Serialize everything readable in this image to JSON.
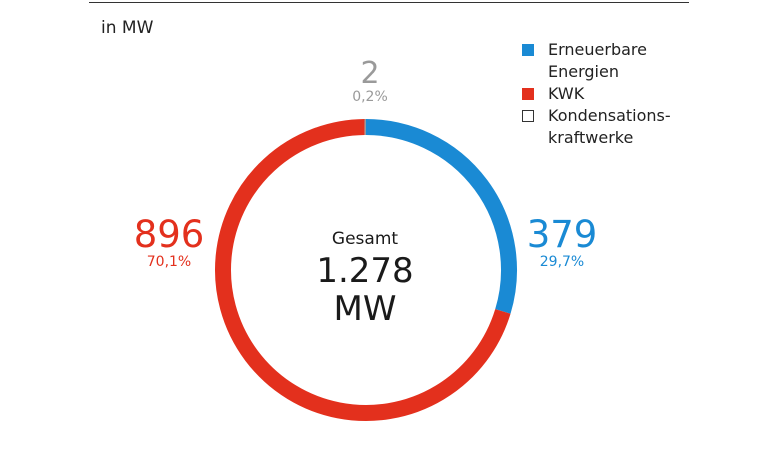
{
  "unit_label": "in MW",
  "center": {
    "label": "Gesamt",
    "value": "1.278",
    "unit": "MW"
  },
  "chart_data": {
    "type": "pie",
    "style": "donut",
    "title": "",
    "unit": "MW",
    "total": 1278,
    "series": [
      {
        "name": "Erneuerbare Energien",
        "value": 379,
        "value_label": "379",
        "percent_label": "29,7%",
        "color": "#1a8ad4"
      },
      {
        "name": "KWK",
        "value": 896,
        "value_label": "896",
        "percent_label": "70,1%",
        "color": "#e3301d"
      },
      {
        "name": "Kondensationskraftwerke",
        "value": 2,
        "value_label": "2",
        "percent_label": "0,2%",
        "color": "#9a9a9a"
      }
    ],
    "legend": {
      "placement": "top-right",
      "items": [
        {
          "label": "Erneuerbare Energien",
          "color": "#1a8ad4",
          "swatch": "filled"
        },
        {
          "label": "KWK",
          "color": "#e3301d",
          "swatch": "filled"
        },
        {
          "label": "Kondensations-kraftwerke",
          "color": "#333333",
          "swatch": "outline"
        }
      ]
    }
  }
}
